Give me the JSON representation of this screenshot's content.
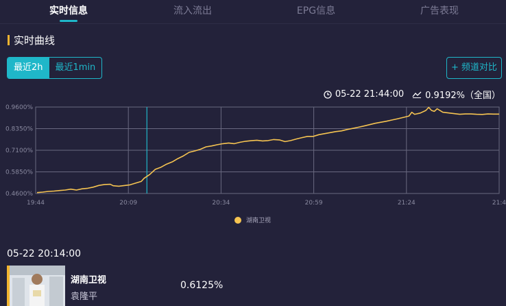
{
  "tabs": [
    {
      "label": "实时信息",
      "active": true
    },
    {
      "label": "流入流出",
      "active": false
    },
    {
      "label": "EPG信息",
      "active": false
    },
    {
      "label": "广告表现",
      "active": false
    }
  ],
  "section": {
    "title": "实时曲线"
  },
  "range": {
    "options": [
      "最近2h",
      "最近1min"
    ],
    "selected": "最近2h"
  },
  "compare_button": "+ 频道对比",
  "readout": {
    "time": "05-22 21:44:00",
    "value": "0.9192%（全国）"
  },
  "chart_data": {
    "type": "line",
    "x_ticks": [
      "19:44",
      "20:09",
      "20:34",
      "20:59",
      "21:24",
      "21:4"
    ],
    "y_ticks": [
      "0.9600%",
      "0.8350%",
      "0.7100%",
      "0.5850%",
      "0.4600%"
    ],
    "ylim": [
      0.46,
      0.96
    ],
    "xlim_minutes": [
      0,
      120
    ],
    "cursor_time": "20:14",
    "grid": true,
    "legend_position": "bottom",
    "series": [
      {
        "name": "湖南卫视",
        "color": "#f6c451",
        "points": [
          [
            0,
            0.465
          ],
          [
            2,
            0.468
          ],
          [
            4,
            0.472
          ],
          [
            6,
            0.474
          ],
          [
            8,
            0.477
          ],
          [
            10,
            0.48
          ],
          [
            12,
            0.485
          ],
          [
            14,
            0.48
          ],
          [
            16,
            0.487
          ],
          [
            18,
            0.49
          ],
          [
            20,
            0.497
          ],
          [
            22,
            0.507
          ],
          [
            24,
            0.512
          ],
          [
            26,
            0.513
          ],
          [
            27,
            0.505
          ],
          [
            29,
            0.502
          ],
          [
            31,
            0.506
          ],
          [
            33,
            0.51
          ],
          [
            35,
            0.52
          ],
          [
            37,
            0.53
          ],
          [
            38,
            0.548
          ],
          [
            40,
            0.57
          ],
          [
            42,
            0.6
          ],
          [
            44,
            0.612
          ],
          [
            46,
            0.63
          ],
          [
            48,
            0.643
          ],
          [
            50,
            0.662
          ],
          [
            52,
            0.678
          ],
          [
            54,
            0.698
          ],
          [
            56,
            0.706
          ],
          [
            58,
            0.716
          ],
          [
            60,
            0.73
          ],
          [
            62,
            0.735
          ],
          [
            64,
            0.742
          ],
          [
            66,
            0.748
          ],
          [
            68,
            0.752
          ],
          [
            70,
            0.748
          ],
          [
            72,
            0.756
          ],
          [
            74,
            0.762
          ],
          [
            76,
            0.765
          ],
          [
            78,
            0.768
          ],
          [
            80,
            0.764
          ],
          [
            82,
            0.766
          ],
          [
            84,
            0.772
          ],
          [
            86,
            0.77
          ],
          [
            88,
            0.76
          ],
          [
            90,
            0.766
          ],
          [
            92,
            0.775
          ],
          [
            94,
            0.783
          ],
          [
            96,
            0.79
          ],
          [
            98,
            0.79
          ],
          [
            100,
            0.8
          ],
          [
            102,
            0.806
          ],
          [
            104,
            0.812
          ],
          [
            106,
            0.818
          ],
          [
            108,
            0.822
          ],
          [
            110,
            0.83
          ],
          [
            112,
            0.836
          ],
          [
            114,
            0.843
          ],
          [
            116,
            0.85
          ],
          [
            118,
            0.858
          ],
          [
            120,
            0.866
          ],
          [
            122,
            0.872
          ],
          [
            124,
            0.878
          ],
          [
            126,
            0.885
          ],
          [
            128,
            0.892
          ],
          [
            130,
            0.9
          ],
          [
            132,
            0.908
          ],
          [
            133,
            0.93
          ],
          [
            134,
            0.918
          ],
          [
            136,
            0.925
          ],
          [
            138,
            0.94
          ],
          [
            139,
            0.958
          ],
          [
            140,
            0.94
          ],
          [
            141,
            0.935
          ],
          [
            142,
            0.95
          ],
          [
            144,
            0.93
          ],
          [
            146,
            0.926
          ],
          [
            148,
            0.922
          ],
          [
            150,
            0.918
          ],
          [
            152,
            0.92
          ],
          [
            154,
            0.92
          ],
          [
            156,
            0.918
          ],
          [
            158,
            0.917
          ],
          [
            160,
            0.92
          ],
          [
            162,
            0.919
          ],
          [
            164,
            0.919
          ]
        ]
      }
    ]
  },
  "detail": {
    "time": "05-22 20:14:00",
    "channel": "湖南卫视",
    "program": "袁隆平",
    "value": "0.6125%"
  }
}
